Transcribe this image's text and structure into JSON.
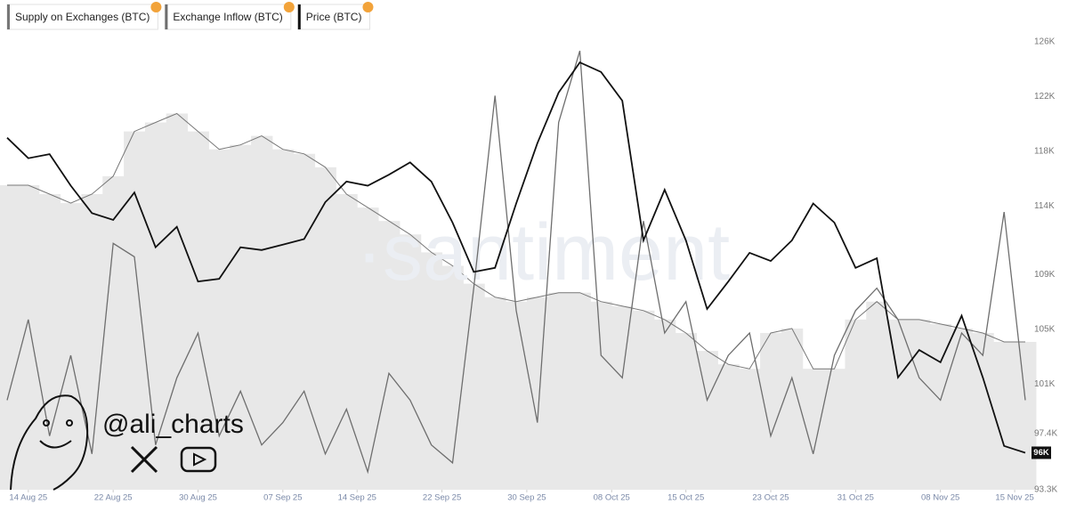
{
  "chart_data": {
    "type": "line",
    "legend": [
      "Supply on Exchanges (BTC)",
      "Exchange Inflow (BTC)",
      "Price (BTC)"
    ],
    "watermark": "·santiment",
    "credit": "@ali_charts",
    "x": [
      "2025-08-12",
      "2025-08-14",
      "2025-08-16",
      "2025-08-18",
      "2025-08-20",
      "2025-08-22",
      "2025-08-24",
      "2025-08-26",
      "2025-08-28",
      "2025-08-30",
      "2025-09-01",
      "2025-09-03",
      "2025-09-05",
      "2025-09-07",
      "2025-09-09",
      "2025-09-11",
      "2025-09-13",
      "2025-09-15",
      "2025-09-17",
      "2025-09-19",
      "2025-09-21",
      "2025-09-23",
      "2025-09-25",
      "2025-09-27",
      "2025-09-29",
      "2025-10-01",
      "2025-10-03",
      "2025-10-05",
      "2025-10-07",
      "2025-10-09",
      "2025-10-11",
      "2025-10-13",
      "2025-10-15",
      "2025-10-17",
      "2025-10-19",
      "2025-10-21",
      "2025-10-23",
      "2025-10-25",
      "2025-10-27",
      "2025-10-29",
      "2025-10-31",
      "2025-11-02",
      "2025-11-04",
      "2025-11-06",
      "2025-11-08",
      "2025-11-10",
      "2025-11-12",
      "2025-11-14",
      "2025-11-16"
    ],
    "xlim": [
      "2025-08-12",
      "2025-11-16"
    ],
    "xticks": [
      {
        "value": "2025-08-14",
        "label": "14 Aug 25"
      },
      {
        "value": "2025-08-22",
        "label": "22 Aug 25"
      },
      {
        "value": "2025-08-30",
        "label": "30 Aug 25"
      },
      {
        "value": "2025-09-07",
        "label": "07 Sep 25"
      },
      {
        "value": "2025-09-14",
        "label": "14 Sep 25"
      },
      {
        "value": "2025-09-22",
        "label": "22 Sep 25"
      },
      {
        "value": "2025-09-30",
        "label": "30 Sep 25"
      },
      {
        "value": "2025-10-08",
        "label": "08 Oct 25"
      },
      {
        "value": "2025-10-15",
        "label": "15 Oct 25"
      },
      {
        "value": "2025-10-23",
        "label": "23 Oct 25"
      },
      {
        "value": "2025-10-31",
        "label": "31 Oct 25"
      },
      {
        "value": "2025-11-08",
        "label": "08 Nov 25"
      },
      {
        "value": "2025-11-15",
        "label": "15 Nov 25"
      }
    ],
    "ylim": [
      93300,
      126000
    ],
    "yticks": [
      {
        "value": 93300,
        "label": "93.3K"
      },
      {
        "value": 97400,
        "label": "97.4K"
      },
      {
        "value": 101000,
        "label": "101K"
      },
      {
        "value": 105000,
        "label": "105K"
      },
      {
        "value": 109000,
        "label": "109K"
      },
      {
        "value": 114000,
        "label": "114K"
      },
      {
        "value": 118000,
        "label": "118K"
      },
      {
        "value": 122000,
        "label": "122K"
      },
      {
        "value": 126000,
        "label": "126K"
      }
    ],
    "current_value": {
      "value": 96000,
      "label": "96K"
    },
    "series": [
      {
        "name": "Supply on Exchanges (BTC)",
        "color": "#777777",
        "fill": "#e8e8e8",
        "style": "area",
        "ylim": [
          0,
          100
        ],
        "values": [
          68,
          68,
          66,
          64,
          66,
          70,
          80,
          82,
          84,
          80,
          76,
          77,
          79,
          76,
          75,
          72,
          66,
          63,
          60,
          57,
          53,
          50,
          46,
          43,
          42,
          43,
          44,
          44,
          42,
          41,
          40,
          38,
          35,
          31,
          28,
          27,
          35,
          36,
          27,
          27,
          38,
          42,
          38,
          38,
          37,
          36,
          35,
          33,
          33
        ]
      },
      {
        "name": "Exchange Inflow (BTC)",
        "color": "#6e6e6e",
        "style": "line",
        "ylim": [
          0,
          100
        ],
        "values": [
          20,
          38,
          12,
          30,
          8,
          55,
          52,
          10,
          25,
          35,
          12,
          22,
          10,
          15,
          22,
          8,
          18,
          4,
          26,
          20,
          10,
          6,
          45,
          88,
          40,
          15,
          82,
          98,
          30,
          25,
          60,
          35,
          42,
          20,
          30,
          35,
          12,
          25,
          8,
          30,
          40,
          45,
          38,
          25,
          20,
          35,
          30,
          62,
          20
        ]
      },
      {
        "name": "Price (BTC)",
        "color": "#111111",
        "style": "line",
        "axis": "y",
        "values": [
          119000,
          117500,
          117800,
          115500,
          113500,
          113000,
          115000,
          111000,
          112500,
          108500,
          108700,
          111000,
          110800,
          111200,
          111600,
          114300,
          115800,
          115500,
          116300,
          117200,
          115800,
          112800,
          109200,
          109500,
          114200,
          118600,
          122300,
          124500,
          123800,
          121700,
          111500,
          115200,
          111500,
          106500,
          108500,
          110600,
          110000,
          111500,
          114200,
          112800,
          109500,
          110200,
          101500,
          103500,
          102600,
          106000,
          101500,
          96500,
          96000
        ]
      }
    ]
  }
}
